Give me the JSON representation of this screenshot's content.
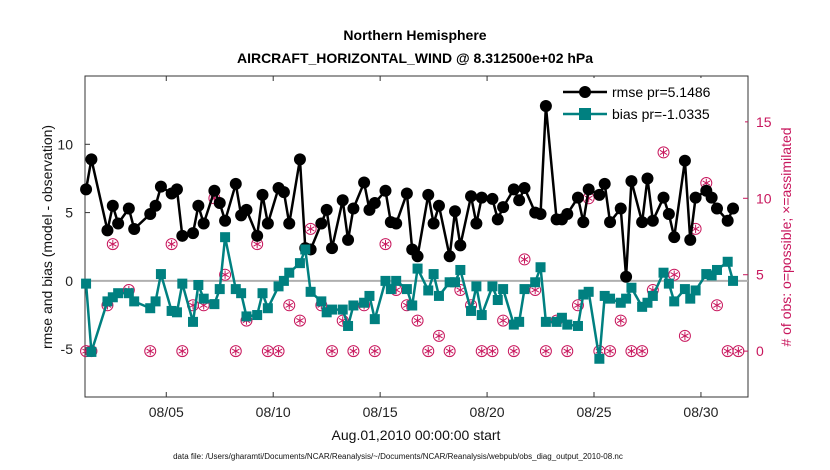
{
  "chart_data": {
    "type": "line",
    "title": "Northern Hemisphere",
    "subtitle": "AIRCRAFT_HORIZONTAL_WIND @ 8.312500e+02 hPa",
    "xlabel": "Aug.01,2010 00:00:00 start",
    "ylabel": "rmse and bias (model - observation)",
    "ylabel_right": "# of obs: o=possible; ×=assimilated",
    "footnote": "data file: /Users/gharamti/Documents/NCAR/Reanalysis/~/Documents/NCAR/Reanalysis/webpub/obs_diag_output_2010-08.nc",
    "xlim": [
      1.2,
      32.2
    ],
    "ylim": [
      -8.5,
      15
    ],
    "ylim_right": [
      -3,
      18
    ],
    "x_ticks": [
      5,
      10,
      15,
      20,
      25,
      30
    ],
    "x_tick_labels": [
      "08/05",
      "08/10",
      "08/15",
      "08/20",
      "08/25",
      "08/30"
    ],
    "y_ticks": [
      -5,
      0,
      5,
      10
    ],
    "y_tick_labels": [
      "-5",
      "0",
      "5",
      "10"
    ],
    "y_right_ticks": [
      0,
      5,
      10,
      15
    ],
    "y_right_tick_labels": [
      "0",
      "5",
      "10",
      "15"
    ],
    "zero_line": 0,
    "series": [
      {
        "name": "rmse",
        "legend": "rmse pr=5.1486",
        "color": "#000000",
        "marker": "circle",
        "x": [
          1.25,
          1.5,
          2.25,
          2.5,
          2.75,
          3.25,
          3.5,
          4.25,
          4.5,
          4.75,
          5.25,
          5.5,
          5.75,
          6.25,
          6.5,
          6.75,
          7.25,
          7.5,
          7.75,
          8.25,
          8.5,
          8.75,
          9.25,
          9.5,
          9.75,
          10.25,
          10.5,
          10.75,
          11.25,
          11.5,
          11.75,
          12.25,
          12.5,
          12.75,
          13.25,
          13.5,
          13.75,
          14.25,
          14.5,
          14.75,
          15.25,
          15.5,
          15.75,
          16.25,
          16.5,
          16.75,
          17.25,
          17.5,
          17.75,
          18.25,
          18.5,
          18.75,
          19.25,
          19.5,
          19.75,
          20.25,
          20.5,
          20.75,
          21.25,
          21.5,
          21.75,
          22.25,
          22.5,
          22.75,
          23.25,
          23.5,
          23.75,
          24.25,
          24.5,
          24.75,
          25.25,
          25.5,
          25.75,
          26.25,
          26.5,
          26.75,
          27.25,
          27.5,
          27.75,
          28.25,
          28.5,
          28.75,
          29.25,
          29.5,
          29.75,
          30.25,
          30.5,
          30.75,
          31.25,
          31.5
        ],
        "values": [
          6.7,
          8.9,
          3.7,
          5.5,
          4.2,
          5.3,
          3.8,
          4.9,
          5.5,
          6.9,
          6.4,
          6.7,
          3.3,
          3.5,
          5.5,
          4.2,
          6.6,
          5.7,
          4.4,
          7.1,
          4.8,
          5.2,
          3.3,
          6.3,
          4.2,
          6.8,
          6.5,
          4.2,
          8.9,
          2.4,
          2.3,
          4.2,
          5.2,
          2.4,
          5.9,
          3.0,
          5.3,
          7.2,
          5.2,
          5.7,
          6.6,
          4.3,
          4.2,
          6.4,
          2.3,
          1.8,
          6.3,
          4.2,
          5.5,
          1.8,
          5.1,
          2.6,
          6.2,
          4.2,
          6.1,
          6.0,
          4.5,
          5.4,
          6.7,
          5.9,
          6.8,
          5.0,
          4.9,
          12.8,
          4.5,
          4.5,
          4.9,
          6.1,
          4.3,
          6.7,
          6.3,
          7.1,
          4.3,
          5.3,
          0.3,
          7.3,
          4.3,
          7.5,
          4.4,
          6.1,
          4.9,
          3.2,
          8.8,
          3.0,
          6.1,
          6.6,
          6.1,
          5.3,
          4.4,
          5.3
        ]
      },
      {
        "name": "bias",
        "legend": "bias pr=-1.0335",
        "color": "#008080",
        "marker": "square",
        "x": [
          1.25,
          1.5,
          2.25,
          2.5,
          2.75,
          3.25,
          3.5,
          4.25,
          4.5,
          4.75,
          5.25,
          5.5,
          5.75,
          6.25,
          6.5,
          6.75,
          7.25,
          7.5,
          7.75,
          8.25,
          8.5,
          8.75,
          9.25,
          9.5,
          9.75,
          10.25,
          10.5,
          10.75,
          11.25,
          11.5,
          11.75,
          12.25,
          12.5,
          12.75,
          13.25,
          13.5,
          13.75,
          14.25,
          14.5,
          14.75,
          15.25,
          15.5,
          15.75,
          16.25,
          16.5,
          16.75,
          17.25,
          17.5,
          17.75,
          18.25,
          18.5,
          18.75,
          19.25,
          19.5,
          19.75,
          20.25,
          20.5,
          20.75,
          21.25,
          21.5,
          21.75,
          22.25,
          22.5,
          22.75,
          23.25,
          23.5,
          23.75,
          24.25,
          24.5,
          24.75,
          25.25,
          25.5,
          25.75,
          26.25,
          26.5,
          26.75,
          27.25,
          27.5,
          27.75,
          28.25,
          28.5,
          28.75,
          29.25,
          29.5,
          29.75,
          30.25,
          30.5,
          30.75,
          31.25,
          31.5
        ],
        "values": [
          -0.2,
          -5.2,
          -1.5,
          -1.2,
          -0.9,
          -0.9,
          -1.5,
          -2.0,
          -1.5,
          0.5,
          -2.2,
          -2.3,
          -0.2,
          -3.0,
          -0.3,
          -1.3,
          -1.7,
          -0.6,
          3.2,
          -0.6,
          -0.9,
          -2.6,
          -2.5,
          -0.9,
          -2.0,
          -0.4,
          0.0,
          0.6,
          1.3,
          2.3,
          -0.8,
          -1.5,
          -2.3,
          -2.1,
          -2.1,
          -3.3,
          -1.8,
          -1.6,
          -1.1,
          -2.8,
          0.0,
          -0.6,
          0.0,
          -0.6,
          -1.8,
          0.9,
          -0.7,
          0.5,
          -1.1,
          -0.1,
          -0.1,
          0.8,
          -2.2,
          -0.4,
          -2.5,
          -0.4,
          -1.4,
          -0.6,
          -3.2,
          -3.0,
          -0.6,
          -0.1,
          1.0,
          -3.0,
          -3.0,
          -2.7,
          -3.2,
          -3.3,
          -1.0,
          -0.8,
          -5.7,
          -1.1,
          -1.3,
          -1.6,
          -1.3,
          -0.5,
          -1.9,
          -1.6,
          -1.1,
          0.6,
          -0.2,
          -1.5,
          -0.6,
          -1.3,
          -0.7,
          0.5,
          0.4,
          0.8,
          1.4,
          0.0
        ]
      }
    ],
    "obs_count_marks": [
      {
        "x": 1.25,
        "y": 0
      },
      {
        "x": 1.5,
        "y": 0
      },
      {
        "x": 2.25,
        "y": 3
      },
      {
        "x": 2.5,
        "y": 7
      },
      {
        "x": 3.25,
        "y": 4
      },
      {
        "x": 4.25,
        "y": 0
      },
      {
        "x": 5.25,
        "y": 7
      },
      {
        "x": 5.75,
        "y": 0
      },
      {
        "x": 6.25,
        "y": 3
      },
      {
        "x": 6.75,
        "y": 3
      },
      {
        "x": 7.25,
        "y": 10
      },
      {
        "x": 7.75,
        "y": 5
      },
      {
        "x": 8.25,
        "y": 0
      },
      {
        "x": 8.75,
        "y": 2
      },
      {
        "x": 9.25,
        "y": 7
      },
      {
        "x": 9.75,
        "y": 0
      },
      {
        "x": 10.25,
        "y": 0
      },
      {
        "x": 10.75,
        "y": 3
      },
      {
        "x": 11.25,
        "y": 2
      },
      {
        "x": 11.75,
        "y": 8
      },
      {
        "x": 12.25,
        "y": 3
      },
      {
        "x": 12.75,
        "y": 0
      },
      {
        "x": 13.25,
        "y": 2
      },
      {
        "x": 13.75,
        "y": 0
      },
      {
        "x": 14.25,
        "y": 3
      },
      {
        "x": 14.75,
        "y": 0
      },
      {
        "x": 15.25,
        "y": 7
      },
      {
        "x": 15.75,
        "y": 4
      },
      {
        "x": 16.25,
        "y": 3
      },
      {
        "x": 16.75,
        "y": 2
      },
      {
        "x": 17.25,
        "y": 0
      },
      {
        "x": 17.75,
        "y": 1
      },
      {
        "x": 18.25,
        "y": 0
      },
      {
        "x": 18.75,
        "y": 4
      },
      {
        "x": 19.25,
        "y": 3
      },
      {
        "x": 19.75,
        "y": 0
      },
      {
        "x": 20.25,
        "y": 0
      },
      {
        "x": 20.75,
        "y": 2
      },
      {
        "x": 21.25,
        "y": 0
      },
      {
        "x": 21.75,
        "y": 6
      },
      {
        "x": 22.25,
        "y": 4
      },
      {
        "x": 22.75,
        "y": 0
      },
      {
        "x": 23.25,
        "y": 2
      },
      {
        "x": 23.75,
        "y": 0
      },
      {
        "x": 24.25,
        "y": 3
      },
      {
        "x": 24.75,
        "y": 10
      },
      {
        "x": 25.25,
        "y": 0
      },
      {
        "x": 25.75,
        "y": 0
      },
      {
        "x": 26.25,
        "y": 2
      },
      {
        "x": 26.75,
        "y": 0
      },
      {
        "x": 27.25,
        "y": 0
      },
      {
        "x": 27.75,
        "y": 4
      },
      {
        "x": 28.25,
        "y": 13
      },
      {
        "x": 28.75,
        "y": 5
      },
      {
        "x": 29.25,
        "y": 1
      },
      {
        "x": 29.75,
        "y": 8
      },
      {
        "x": 30.25,
        "y": 11
      },
      {
        "x": 30.75,
        "y": 3
      },
      {
        "x": 31.25,
        "y": 0
      },
      {
        "x": 31.75,
        "y": 0
      }
    ],
    "color_obs": "#c8175d"
  }
}
